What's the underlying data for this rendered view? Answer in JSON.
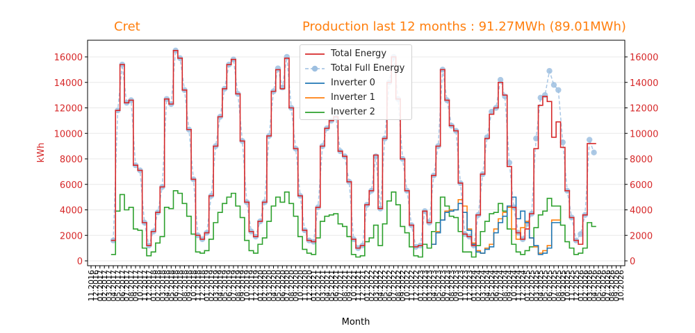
{
  "titles": {
    "left": "Cret",
    "right": "Production last 12 months : 91.27MWh (89.01MWh)"
  },
  "chart_data": {
    "type": "line",
    "xlabel": "Month",
    "ylabel": "kWh",
    "ylim": [
      0,
      17000
    ],
    "yticks": [
      0,
      2000,
      4000,
      6000,
      8000,
      10000,
      12000,
      14000,
      16000
    ],
    "grid": true,
    "legend_position": "top-center",
    "x_start": "11.2016",
    "x_end": "10.2026",
    "xtick_labels": [
      "11.2016",
      "12.2016",
      "01.2017",
      "02.2017",
      "03.2017",
      "04.2017",
      "05.2017",
      "06.2017",
      "07.2017",
      "08.2017",
      "09.2017",
      "10.2017",
      "11.2017",
      "12.2017",
      "01.2018",
      "02.2018",
      "03.2018",
      "04.2018",
      "05.2018",
      "06.2018",
      "07.2018",
      "08.2018",
      "09.2018",
      "10.2018",
      "11.2018",
      "12.2018",
      "01.2019",
      "02.2019",
      "03.2019",
      "04.2019",
      "05.2019",
      "06.2019",
      "07.2019",
      "08.2019",
      "09.2019",
      "10.2019",
      "11.2019",
      "12.2019",
      "01.2020",
      "02.2020",
      "03.2020",
      "04.2020",
      "05.2020",
      "06.2020",
      "07.2020",
      "08.2020",
      "09.2020",
      "10.2020",
      "11.2020",
      "12.2020",
      "01.2021",
      "02.2021",
      "03.2021",
      "04.2021",
      "05.2021",
      "06.2021",
      "07.2021",
      "08.2021",
      "09.2021",
      "10.2021",
      "11.2021",
      "12.2021",
      "01.2022",
      "02.2022",
      "03.2022",
      "04.2022",
      "05.2022",
      "06.2022",
      "07.2022",
      "08.2022",
      "09.2022",
      "10.2022",
      "11.2022",
      "12.2022",
      "01.2023",
      "02.2023",
      "03.2023",
      "04.2023",
      "05.2023",
      "06.2023",
      "07.2023",
      "08.2023",
      "09.2023",
      "10.2023",
      "11.2023",
      "12.2023",
      "01.2024",
      "02.2024",
      "03.2024",
      "04.2024",
      "05.2024",
      "06.2024",
      "07.2024",
      "08.2024",
      "09.2024",
      "10.2024",
      "11.2024",
      "12.2024",
      "01.2025",
      "02.2025",
      "03.2025",
      "04.2025",
      "05.2025",
      "06.2025",
      "07.2025",
      "08.2025",
      "09.2025",
      "10.2025",
      "11.2025",
      "12.2025",
      "01.2026",
      "02.2026",
      "03.2026",
      "04.2026",
      "05.2026",
      "06.2026",
      "07.2026",
      "08.2026",
      "09.2026",
      "10.2026"
    ],
    "series": [
      {
        "name": "Total Energy",
        "style": "step",
        "color": "#d62728",
        "start_index": 5,
        "values": [
          1600,
          11800,
          15400,
          12400,
          12600,
          7500,
          7100,
          3000,
          1200,
          2300,
          3800,
          5800,
          12700,
          12300,
          16500,
          15900,
          13400,
          10300,
          6400,
          2000,
          1700,
          2200,
          5100,
          9000,
          11300,
          13500,
          15400,
          15800,
          13100,
          9400,
          4600,
          2300,
          1900,
          3100,
          4600,
          9800,
          13300,
          15000,
          13500,
          15900,
          12000,
          8800,
          5100,
          2400,
          1600,
          1500,
          4200,
          9000,
          10400,
          11000,
          11300,
          8600,
          8200,
          6200,
          1700,
          1000,
          1200,
          4400,
          5500,
          8300,
          4100,
          9600,
          14000,
          16000,
          12700,
          8000,
          5500,
          2800,
          1100,
          1200,
          3900,
          3000,
          6700,
          9000,
          15000,
          12600,
          10600,
          10200,
          6100,
          2100,
          1900,
          1200,
          3600,
          6800,
          9600,
          11500,
          12000,
          14000,
          13000,
          7400,
          4200,
          2200,
          1700,
          2500,
          3700,
          8800,
          12200,
          12900,
          12500,
          9700,
          10900,
          8900,
          5500,
          3400,
          1600,
          1300,
          3600,
          9200,
          9200
        ]
      },
      {
        "name": "Total Full Energy",
        "style": "dashed-markers",
        "color": "#a9c7e5",
        "start_index": 5,
        "values": [
          1600,
          11800,
          15400,
          12400,
          12600,
          7500,
          7100,
          3000,
          1200,
          2300,
          3800,
          5800,
          12700,
          12300,
          16500,
          15900,
          13400,
          10300,
          6400,
          2000,
          1700,
          2200,
          5100,
          9000,
          11300,
          13500,
          15400,
          15800,
          13100,
          9400,
          4600,
          2300,
          1900,
          3100,
          4600,
          9800,
          13300,
          15100,
          13600,
          16000,
          12000,
          8800,
          5100,
          2400,
          1600,
          1500,
          4200,
          9000,
          10400,
          11000,
          11300,
          8600,
          8200,
          6200,
          1700,
          1000,
          1200,
          4400,
          5500,
          8200,
          4100,
          9600,
          14000,
          16000,
          12700,
          8000,
          5500,
          2800,
          1100,
          1200,
          3900,
          3000,
          6700,
          9000,
          15000,
          12600,
          10600,
          10200,
          6100,
          2100,
          1900,
          1200,
          3600,
          6800,
          9700,
          11700,
          12000,
          14200,
          12900,
          7700,
          4200,
          2200,
          1700,
          2900,
          3700,
          9600,
          12800,
          13000,
          14900,
          13800,
          13400,
          9300,
          5500,
          3400,
          1600,
          2100,
          3600,
          9500,
          8500
        ]
      },
      {
        "name": "Inverter 0",
        "style": "step",
        "color": "#1f77b4",
        "start_index": 77,
        "values": [
          1300,
          2200,
          3200,
          3800,
          3900,
          4000,
          4500,
          3800,
          2400,
          1300,
          700,
          600,
          900,
          1100,
          2200,
          3000,
          3500,
          4300,
          5000,
          3300,
          3900,
          3000,
          1800,
          1200,
          500,
          600,
          1000,
          3000,
          3000
        ]
      },
      {
        "name": "Inverter 1",
        "style": "step",
        "color": "#ff7f0e",
        "start_index": 77,
        "values": [
          1300,
          2300,
          3200,
          3900,
          4000,
          4000,
          4800,
          4300,
          2500,
          1400,
          800,
          600,
          1000,
          1300,
          2500,
          3300,
          3800,
          4200,
          2500,
          1700,
          2600,
          3100,
          1800,
          1100,
          600,
          800,
          1200,
          3200,
          3200
        ]
      },
      {
        "name": "Inverter 2",
        "style": "step",
        "color": "#2ca02c",
        "start_index": 5,
        "values": [
          500,
          3900,
          5200,
          4000,
          4200,
          2500,
          2400,
          1000,
          400,
          700,
          1400,
          1900,
          4200,
          4100,
          5500,
          5300,
          4500,
          3500,
          2100,
          700,
          600,
          800,
          1700,
          3000,
          3800,
          4500,
          5000,
          5300,
          4300,
          3400,
          1600,
          800,
          600,
          1300,
          1800,
          3100,
          4300,
          5000,
          4600,
          5400,
          4500,
          3500,
          1900,
          900,
          600,
          500,
          1800,
          3100,
          3500,
          3600,
          3700,
          2900,
          2700,
          1900,
          500,
          300,
          400,
          1500,
          1800,
          2800,
          1200,
          2900,
          4700,
          5400,
          4400,
          2700,
          2200,
          1100,
          400,
          300,
          1300,
          1000,
          2300,
          3000,
          5000,
          4300,
          3500,
          3400,
          2300,
          700,
          700,
          300,
          1200,
          2300,
          3100,
          3700,
          3800,
          4500,
          3900,
          2500,
          1300,
          700,
          500,
          800,
          1100,
          2600,
          3600,
          3900,
          4900,
          4300,
          4300,
          2800,
          1500,
          1000,
          500,
          600,
          1000,
          3000,
          2700
        ]
      }
    ]
  }
}
